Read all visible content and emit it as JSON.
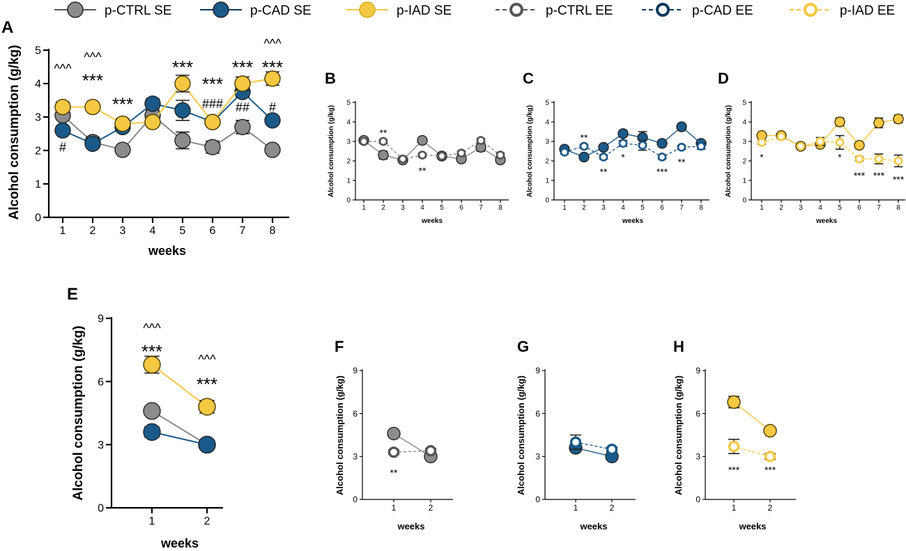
{
  "colors": {
    "ctrl": "#8c8c8c",
    "ctrl_dark": "#555555",
    "cad": "#1a5a8a",
    "cad_dark": "#0e3a5c",
    "iad": "#f5c842",
    "iad_dark": "#d9a81a",
    "axis": "#000000"
  },
  "legend": [
    {
      "label": "p-CTRL SE",
      "group": "ctrl",
      "style": "SE"
    },
    {
      "label": "p-CAD SE",
      "group": "cad",
      "style": "SE"
    },
    {
      "label": "p-IAD SE",
      "group": "iad",
      "style": "SE"
    },
    {
      "label": "p-CTRL EE",
      "group": "ctrl",
      "style": "EE"
    },
    {
      "label": "p-CAD EE",
      "group": "cad",
      "style": "EE"
    },
    {
      "label": "p-IAD EE",
      "group": "iad",
      "style": "EE"
    }
  ],
  "chart_data": [
    {
      "id": "A",
      "type": "line",
      "ylabel": "Alcohol consumption (g/kg)",
      "xlabel": "weeks",
      "x": [
        1,
        2,
        3,
        4,
        5,
        6,
        7,
        8
      ],
      "ylim": [
        0,
        5
      ],
      "yticks": [
        0,
        1,
        2,
        3,
        4,
        5
      ],
      "series": [
        {
          "name": "p-CTRL SE",
          "group": "ctrl",
          "style": "SE",
          "values": [
            3.05,
            2.25,
            2.02,
            3.05,
            2.3,
            2.1,
            2.7,
            2.02
          ],
          "err": [
            0.12,
            0.15,
            0.08,
            0.15,
            0.25,
            0.18,
            0.2,
            0.1
          ]
        },
        {
          "name": "p-CAD SE",
          "group": "cad",
          "style": "SE",
          "values": [
            2.6,
            2.2,
            2.7,
            3.4,
            3.2,
            2.85,
            3.75,
            2.9
          ],
          "err": [
            0.12,
            0.1,
            0.1,
            0.15,
            0.3,
            0.1,
            0.15,
            0.1
          ]
        },
        {
          "name": "p-IAD SE",
          "group": "iad",
          "style": "SE",
          "values": [
            3.3,
            3.3,
            2.8,
            2.85,
            4.0,
            2.85,
            4.0,
            4.15
          ],
          "err": [
            0.15,
            0.05,
            0.15,
            0.1,
            0.25,
            0.1,
            0.2,
            0.2
          ]
        }
      ],
      "annotations": [
        {
          "x": 1,
          "y": 4.45,
          "text": "^^^"
        },
        {
          "x": 2,
          "y": 4.8,
          "text": "^^^"
        },
        {
          "x": 2,
          "y": 4.2,
          "text": "***"
        },
        {
          "x": 3,
          "y": 3.5,
          "text": "***"
        },
        {
          "x": 5,
          "y": 4.6,
          "text": "***"
        },
        {
          "x": 6,
          "y": 4.1,
          "text": "***"
        },
        {
          "x": 6,
          "y": 3.4,
          "text": "###"
        },
        {
          "x": 7,
          "y": 4.6,
          "text": "***"
        },
        {
          "x": 7,
          "y": 3.3,
          "text": "##"
        },
        {
          "x": 8,
          "y": 5.2,
          "text": "^^^"
        },
        {
          "x": 8,
          "y": 4.6,
          "text": "***"
        },
        {
          "x": 1,
          "y": 2.1,
          "text": "#"
        },
        {
          "x": 8,
          "y": 3.3,
          "text": "#"
        }
      ]
    },
    {
      "id": "B",
      "type": "line",
      "ylabel": "Alcohol consumption (g/kg)",
      "xlabel": "weeks",
      "x": [
        1,
        2,
        3,
        4,
        5,
        6,
        7,
        8
      ],
      "ylim": [
        0,
        5
      ],
      "yticks": [
        0,
        1,
        2,
        3,
        4,
        5
      ],
      "series": [
        {
          "name": "p-CTRL SE",
          "group": "ctrl",
          "style": "SE",
          "values": [
            3.05,
            2.3,
            2.05,
            3.05,
            2.25,
            2.1,
            2.7,
            2.05
          ],
          "err": [
            0.1,
            0.2,
            0.1,
            0.1,
            0.15,
            0.15,
            0.2,
            0.1
          ]
        },
        {
          "name": "p-CTRL EE",
          "group": "ctrl",
          "style": "EE",
          "values": [
            3.0,
            3.0,
            2.1,
            2.3,
            2.25,
            2.4,
            3.05,
            2.3
          ],
          "err": [
            0.1,
            0.1,
            0.1,
            0.1,
            0.1,
            0.1,
            0.1,
            0.1
          ]
        }
      ],
      "annotations": [
        {
          "x": 2,
          "y": 3.55,
          "text": "**"
        },
        {
          "x": 4,
          "y": 1.6,
          "text": "**"
        }
      ]
    },
    {
      "id": "C",
      "type": "line",
      "ylabel": "Alcohol consumption (g/kg)",
      "xlabel": "weeks",
      "x": [
        1,
        2,
        3,
        4,
        5,
        6,
        7,
        8
      ],
      "ylim": [
        0,
        5
      ],
      "yticks": [
        0,
        1,
        2,
        3,
        4,
        5
      ],
      "series": [
        {
          "name": "p-CAD SE",
          "group": "cad",
          "style": "SE",
          "values": [
            2.6,
            2.2,
            2.7,
            3.4,
            3.2,
            2.9,
            3.75,
            2.9
          ],
          "err": [
            0.1,
            0.1,
            0.1,
            0.15,
            0.3,
            0.1,
            0.15,
            0.1
          ]
        },
        {
          "name": "p-CAD EE",
          "group": "cad",
          "style": "EE",
          "values": [
            2.45,
            2.75,
            2.2,
            2.9,
            2.8,
            2.2,
            2.7,
            2.75
          ],
          "err": [
            0.1,
            0.1,
            0.1,
            0.15,
            0.25,
            0.1,
            0.1,
            0.15
          ]
        }
      ],
      "annotations": [
        {
          "x": 2,
          "y": 3.3,
          "text": "**"
        },
        {
          "x": 3,
          "y": 1.55,
          "text": "**"
        },
        {
          "x": 4,
          "y": 2.3,
          "text": "*"
        },
        {
          "x": 6,
          "y": 1.55,
          "text": "***"
        },
        {
          "x": 7,
          "y": 2.05,
          "text": "**"
        }
      ]
    },
    {
      "id": "D",
      "type": "line",
      "ylabel": "Alcohol consumption (g/kg)",
      "xlabel": "weeks",
      "x": [
        1,
        2,
        3,
        4,
        5,
        6,
        7,
        8
      ],
      "ylim": [
        0,
        5
      ],
      "yticks": [
        0,
        1,
        2,
        3,
        4,
        5
      ],
      "series": [
        {
          "name": "p-IAD SE",
          "group": "iad",
          "style": "SE",
          "values": [
            3.3,
            3.3,
            2.75,
            2.85,
            4.0,
            2.8,
            3.95,
            4.15
          ],
          "err": [
            0.1,
            0.1,
            0.1,
            0.1,
            0.2,
            0.1,
            0.25,
            0.2
          ]
        },
        {
          "name": "p-IAD EE",
          "group": "iad",
          "style": "EE",
          "values": [
            2.95,
            3.25,
            2.75,
            3.0,
            2.95,
            2.1,
            2.1,
            2.0
          ],
          "err": [
            0.1,
            0.1,
            0.15,
            0.2,
            0.35,
            0.1,
            0.25,
            0.3
          ]
        }
      ],
      "annotations": [
        {
          "x": 1,
          "y": 2.3,
          "text": "*"
        },
        {
          "x": 5,
          "y": 2.3,
          "text": "*"
        },
        {
          "x": 6,
          "y": 1.35,
          "text": "***"
        },
        {
          "x": 7,
          "y": 1.35,
          "text": "***"
        },
        {
          "x": 8,
          "y": 1.15,
          "text": "***"
        }
      ]
    },
    {
      "id": "E",
      "type": "line",
      "ylabel": "Alcohol consumption (g/kg)",
      "xlabel": "weeks",
      "x": [
        1,
        2
      ],
      "ylim": [
        0,
        9
      ],
      "yticks": [
        0,
        3,
        6,
        9
      ],
      "series": [
        {
          "name": "p-CTRL SE",
          "group": "ctrl",
          "style": "SE",
          "values": [
            4.6,
            3.0
          ],
          "err": [
            0.15,
            0.1
          ]
        },
        {
          "name": "p-CAD SE",
          "group": "cad",
          "style": "SE",
          "values": [
            3.6,
            3.0
          ],
          "err": [
            0.25,
            0.1
          ]
        },
        {
          "name": "p-IAD SE",
          "group": "iad",
          "style": "SE",
          "values": [
            6.8,
            4.8
          ],
          "err": [
            0.4,
            0.3
          ]
        }
      ],
      "annotations": [
        {
          "x": 1,
          "y": 8.55,
          "text": "^^^"
        },
        {
          "x": 1,
          "y": 7.6,
          "text": "***"
        },
        {
          "x": 2,
          "y": 7.05,
          "text": "^^^"
        },
        {
          "x": 2,
          "y": 6.05,
          "text": "***"
        }
      ]
    },
    {
      "id": "F",
      "type": "line",
      "ylabel": "Alcohol consumption (g/kg)",
      "xlabel": "weeks",
      "x": [
        1,
        2
      ],
      "ylim": [
        0,
        9
      ],
      "yticks": [
        0,
        3,
        6,
        9
      ],
      "series": [
        {
          "name": "p-CTRL SE",
          "group": "ctrl",
          "style": "SE",
          "values": [
            4.6,
            3.0
          ],
          "err": [
            0.15,
            0.2
          ]
        },
        {
          "name": "p-CTRL EE",
          "group": "ctrl",
          "style": "EE",
          "values": [
            3.3,
            3.4
          ],
          "err": [
            0.15,
            0.15
          ]
        }
      ],
      "annotations": [
        {
          "x": 1,
          "y": 2.0,
          "text": "**"
        }
      ]
    },
    {
      "id": "G",
      "type": "line",
      "ylabel": "Alcohol consumption (g/kg)",
      "xlabel": "weeks",
      "x": [
        1,
        2
      ],
      "ylim": [
        0,
        9
      ],
      "yticks": [
        0,
        3,
        6,
        9
      ],
      "series": [
        {
          "name": "p-CAD SE",
          "group": "cad",
          "style": "SE",
          "values": [
            3.6,
            3.0
          ],
          "err": [
            0.25,
            0.15
          ]
        },
        {
          "name": "p-CAD EE",
          "group": "cad",
          "style": "EE",
          "values": [
            4.0,
            3.5
          ],
          "err": [
            0.5,
            0.15
          ]
        }
      ],
      "annotations": []
    },
    {
      "id": "H",
      "type": "line",
      "ylabel": "Alcohol consumption (g/kg)",
      "xlabel": "weeks",
      "x": [
        1,
        2
      ],
      "ylim": [
        0,
        9
      ],
      "yticks": [
        0,
        3,
        6,
        9
      ],
      "series": [
        {
          "name": "p-IAD SE",
          "group": "iad",
          "style": "SE",
          "values": [
            6.8,
            4.8
          ],
          "err": [
            0.4,
            0.2
          ]
        },
        {
          "name": "p-IAD EE",
          "group": "iad",
          "style": "EE",
          "values": [
            3.7,
            3.0
          ],
          "err": [
            0.5,
            0.2
          ]
        }
      ],
      "annotations": [
        {
          "x": 1,
          "y": 2.2,
          "text": "***"
        },
        {
          "x": 2,
          "y": 2.2,
          "text": "***"
        }
      ]
    }
  ]
}
